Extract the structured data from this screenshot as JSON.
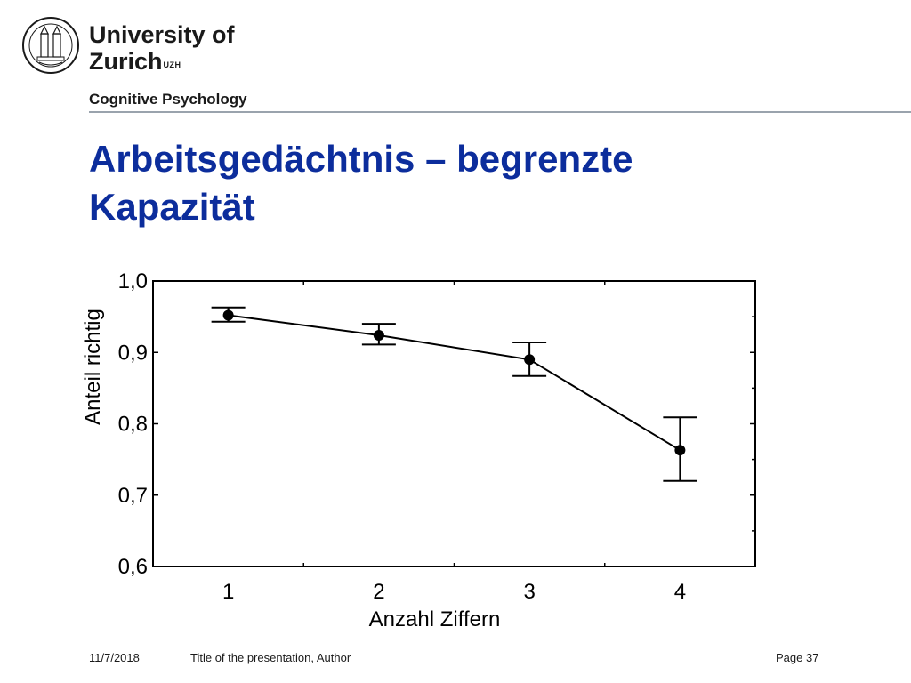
{
  "header": {
    "logo_line1": "University of",
    "logo_line2": "Zurich",
    "logo_sup": "UZH",
    "department": "Cognitive Psychology"
  },
  "slide": {
    "title_line1": "Arbeitsgedächtnis – begrenzte",
    "title_line2": "Kapazität"
  },
  "chart_data": {
    "type": "line",
    "title": "",
    "xlabel": "Anzahl Ziffern",
    "ylabel": "Anteil richtig",
    "x": [
      1,
      2,
      3,
      4
    ],
    "x_tick_labels": [
      "1",
      "2",
      "3",
      "4"
    ],
    "y_tick_labels": [
      "1,0",
      "0,9",
      "0,8",
      "0,7",
      "0,6"
    ],
    "y_ticks": [
      1.0,
      0.9,
      0.8,
      0.7,
      0.6
    ],
    "xlim": [
      0.5,
      4.5
    ],
    "ylim": [
      0.6,
      1.0
    ],
    "series": [
      {
        "values": [
          0.952,
          0.924,
          0.89,
          0.763
        ],
        "error_low": [
          0.943,
          0.911,
          0.867,
          0.72
        ],
        "error_high": [
          0.963,
          0.94,
          0.914,
          0.809
        ]
      }
    ],
    "grid": false,
    "line_color": "#000000"
  },
  "footer": {
    "date": "11/7/2018",
    "presentation": "Title of the presentation, Author",
    "page": "Page 37"
  }
}
